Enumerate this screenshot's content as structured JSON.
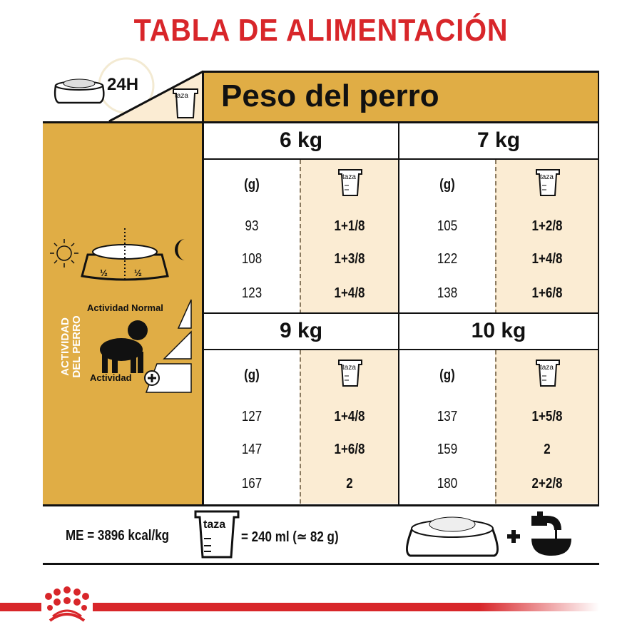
{
  "title": "TABLA DE ALIMENTACIÓN",
  "header": {
    "period": "24H",
    "cup_label": "taza",
    "weight_title": "Peso del perro"
  },
  "sidebar": {
    "vertical_label_1": "ACTIVIDAD",
    "vertical_label_2": "DEL PERRO",
    "half_left": "½",
    "half_right": "½",
    "activity_normal": "Actividad Normal",
    "activity_plus": "Actividad"
  },
  "columns": {
    "grams_label": "(g)",
    "cup_label": "taza"
  },
  "weights": [
    {
      "label": "6 kg",
      "rows": [
        [
          "93",
          "1+1/8"
        ],
        [
          "108",
          "1+3/8"
        ],
        [
          "123",
          "1+4/8"
        ]
      ]
    },
    {
      "label": "7 kg",
      "rows": [
        [
          "105",
          "1+2/8"
        ],
        [
          "122",
          "1+4/8"
        ],
        [
          "138",
          "1+6/8"
        ]
      ]
    },
    {
      "label": "9 kg",
      "rows": [
        [
          "127",
          "1+4/8"
        ],
        [
          "147",
          "1+6/8"
        ],
        [
          "167",
          "2"
        ]
      ]
    },
    {
      "label": "10 kg",
      "rows": [
        [
          "137",
          "1+5/8"
        ],
        [
          "159",
          "2"
        ],
        [
          "180",
          "2+2/8"
        ]
      ]
    }
  ],
  "footer": {
    "energy": "ME = 3896 kcal/kg",
    "cup_label": "taza",
    "cup_equivalence": "= 240 ml (≃ 82 g)",
    "plus": "+"
  },
  "colors": {
    "brand_red": "#d8262a",
    "gold": "#e0ad45",
    "cream": "#fbecd3"
  }
}
